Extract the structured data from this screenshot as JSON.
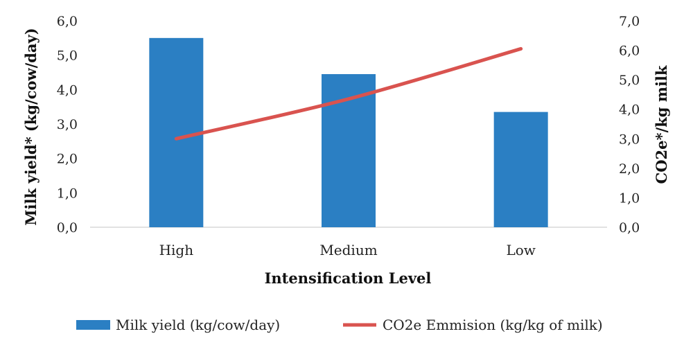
{
  "chart_data": {
    "type": "bar",
    "categories": [
      "High",
      "Medium",
      "Low"
    ],
    "xlabel": "Intensification Level",
    "ylabel": "Milk yield* (kg/cow/day)",
    "y2label": "CO2e*/kg milk",
    "ylim": [
      0,
      6
    ],
    "y2lim": [
      0,
      7
    ],
    "yticks": [
      "0,0",
      "1,0",
      "2,0",
      "3,0",
      "4,0",
      "5,0",
      "6,0"
    ],
    "y2ticks": [
      "0,0",
      "1,0",
      "2,0",
      "3,0",
      "4,0",
      "5,0",
      "6,0",
      "7,0"
    ],
    "grid": false,
    "legend_position": "bottom",
    "series": [
      {
        "name": "Milk yield (kg/cow/day)",
        "type": "bar",
        "axis": "left",
        "color": "#2b7fc3",
        "values": [
          5.5,
          4.45,
          3.35
        ]
      },
      {
        "name": "CO2e Emmision (kg/kg of milk)",
        "type": "line",
        "axis": "right",
        "color": "#d9534f",
        "values": [
          3.0,
          4.35,
          6.05
        ]
      }
    ]
  }
}
